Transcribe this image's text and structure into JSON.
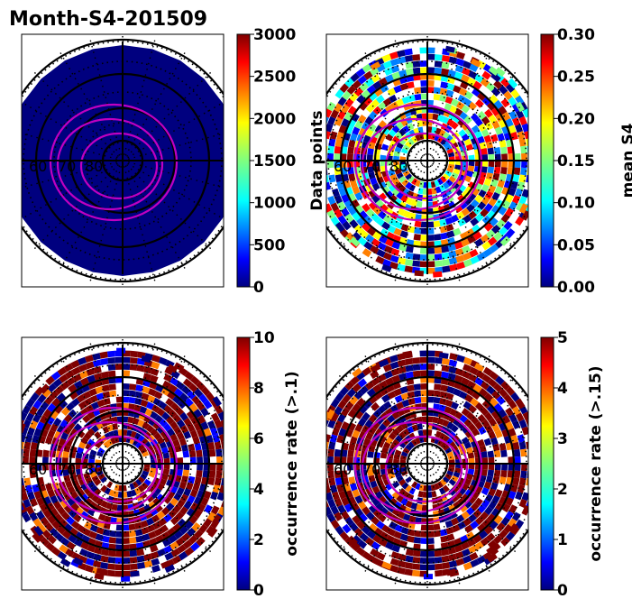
{
  "chart_data": [
    {
      "type": "heatmap",
      "projection": "polar",
      "title": "Month-S4-201509",
      "fill": "uniform-low",
      "colorbar": {
        "label": "Data points",
        "vmin": 0,
        "vmax": 3000,
        "ticks": [
          "0",
          "500",
          "1000",
          "1500",
          "2000",
          "2500",
          "3000"
        ]
      },
      "latitude_labels": [
        "60",
        "70",
        "80"
      ]
    },
    {
      "type": "heatmap",
      "projection": "polar",
      "fill": "mixed",
      "colorbar": {
        "label": "mean S4",
        "vmin": 0,
        "vmax": 0.3,
        "ticks": [
          "0.00",
          "0.05",
          "0.10",
          "0.15",
          "0.20",
          "0.25",
          "0.30"
        ]
      },
      "latitude_labels": [
        "60",
        "70",
        "80"
      ]
    },
    {
      "type": "heatmap",
      "projection": "polar",
      "fill": "mostly-high",
      "colorbar": {
        "label": "occurrence rate (>.1)",
        "vmin": 0,
        "vmax": 10,
        "ticks": [
          "0",
          "2",
          "4",
          "6",
          "8",
          "10"
        ]
      },
      "latitude_labels": [
        "60",
        "70",
        "80"
      ]
    },
    {
      "type": "heatmap",
      "projection": "polar",
      "fill": "mostly-high",
      "colorbar": {
        "label": "occurrence rate (>.15)",
        "vmin": 0,
        "vmax": 5,
        "ticks": [
          "0",
          "1",
          "2",
          "3",
          "4",
          "5"
        ]
      },
      "latitude_labels": [
        "60",
        "70",
        "80"
      ]
    }
  ],
  "colors": {
    "magenta": "#c000c0",
    "jet": [
      "#00007f",
      "#0000ff",
      "#007fff",
      "#00ffff",
      "#7fff7f",
      "#ffff00",
      "#ff7f00",
      "#ff0000",
      "#7f0000"
    ]
  }
}
